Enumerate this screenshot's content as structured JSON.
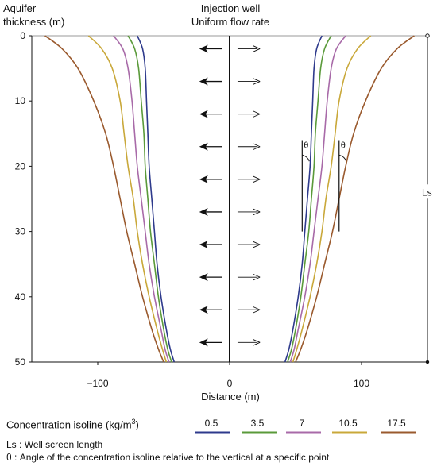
{
  "chart_data": {
    "type": "line",
    "title_line1": "Injection well",
    "title_line2": "Uniform flow rate",
    "ylabel_line1": "Aquifer",
    "ylabel_line2": "thickness (m)",
    "xlabel": "Distance (m)",
    "xlim": [
      -150,
      150
    ],
    "ylim": [
      0,
      50
    ],
    "y_inverted": true,
    "x_ticks": [
      -100,
      0,
      100
    ],
    "x_tick_labels": [
      "−100",
      "0",
      "100"
    ],
    "y_ticks": [
      0,
      10,
      20,
      30,
      40,
      50
    ],
    "arrow_depths": [
      2,
      7,
      12,
      17,
      22,
      27,
      32,
      37,
      42,
      47
    ],
    "series": [
      {
        "name": "0.5",
        "color": "#2e3a8c",
        "points": [
          [
            -70,
            0
          ],
          [
            -66,
            2
          ],
          [
            -64,
            5
          ],
          [
            -63,
            10
          ],
          [
            -62,
            15
          ],
          [
            -61,
            20
          ],
          [
            -59,
            25
          ],
          [
            -57,
            30
          ],
          [
            -55,
            35
          ],
          [
            -52,
            40
          ],
          [
            -48,
            45
          ],
          [
            -45,
            48
          ],
          [
            -42,
            50
          ]
        ]
      },
      {
        "name": "3.5",
        "color": "#5a9a3a",
        "points": [
          [
            -77,
            0
          ],
          [
            -72,
            2
          ],
          [
            -69,
            5
          ],
          [
            -67,
            10
          ],
          [
            -65,
            15
          ],
          [
            -64,
            20
          ],
          [
            -62,
            25
          ],
          [
            -60,
            30
          ],
          [
            -57,
            35
          ],
          [
            -54,
            40
          ],
          [
            -50,
            45
          ],
          [
            -47,
            48
          ],
          [
            -44,
            50
          ]
        ]
      },
      {
        "name": "7",
        "color": "#a86aa8",
        "points": [
          [
            -88,
            0
          ],
          [
            -81,
            2
          ],
          [
            -77,
            5
          ],
          [
            -74,
            10
          ],
          [
            -72,
            15
          ],
          [
            -70,
            20
          ],
          [
            -67,
            25
          ],
          [
            -64,
            30
          ],
          [
            -61,
            35
          ],
          [
            -57,
            40
          ],
          [
            -52,
            45
          ],
          [
            -49,
            48
          ],
          [
            -46,
            50
          ]
        ]
      },
      {
        "name": "10.5",
        "color": "#c9a83a",
        "points": [
          [
            -107,
            0
          ],
          [
            -97,
            2
          ],
          [
            -89,
            5
          ],
          [
            -83,
            10
          ],
          [
            -80,
            15
          ],
          [
            -77,
            20
          ],
          [
            -73,
            25
          ],
          [
            -70,
            30
          ],
          [
            -66,
            35
          ],
          [
            -61,
            40
          ],
          [
            -55,
            45
          ],
          [
            -51,
            48
          ],
          [
            -48,
            50
          ]
        ]
      },
      {
        "name": "17.5",
        "color": "#9a5a2e",
        "points": [
          [
            -140,
            0
          ],
          [
            -127,
            2
          ],
          [
            -115,
            5
          ],
          [
            -103,
            10
          ],
          [
            -94,
            15
          ],
          [
            -88,
            20
          ],
          [
            -83,
            25
          ],
          [
            -78,
            30
          ],
          [
            -72,
            35
          ],
          [
            -66,
            40
          ],
          [
            -59,
            45
          ],
          [
            -54,
            48
          ],
          [
            -50,
            50
          ]
        ]
      }
    ],
    "theta_label": "θ",
    "ls_label": "Ls",
    "legend_title": "Concentration isoline (kg/m",
    "legend_title_sup": "3",
    "legend_title_end": ")",
    "notes": [
      {
        "key": "Ls",
        "sep": " : ",
        "text": "Well screen length"
      },
      {
        "key": "θ",
        "sep": "   : ",
        "text": "Angle of the concentration isoline relative to the vertical at a specific point"
      }
    ]
  }
}
